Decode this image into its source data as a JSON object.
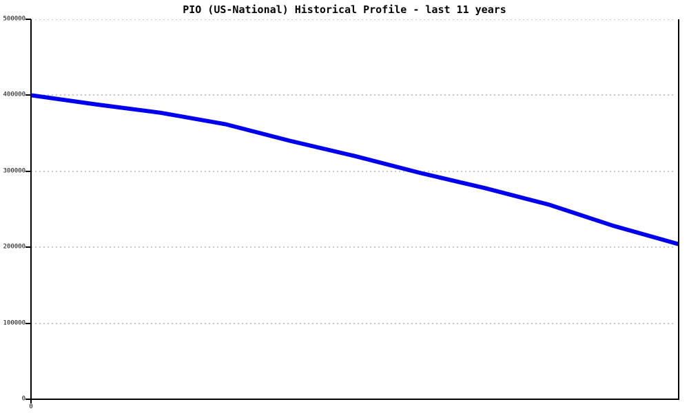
{
  "title": "PIO (US-National) Historical Profile - last 11 years",
  "chart_data": {
    "type": "line",
    "title": "PIO (US-National) Historical Profile - last 11 years",
    "x": [
      0,
      1,
      2,
      3,
      4,
      5,
      6,
      7,
      8,
      9,
      10
    ],
    "values": [
      400000,
      388000,
      377000,
      362000,
      340000,
      320000,
      298000,
      278000,
      256000,
      228000,
      204000
    ],
    "xlabel": "",
    "ylabel": "",
    "xlim": [
      0,
      10
    ],
    "ylim": [
      0,
      500000
    ],
    "y_ticks": [
      0,
      100000,
      200000,
      300000,
      400000,
      500000
    ],
    "y_tick_labels": [
      "0",
      "100000",
      "200000",
      "300000",
      "400000",
      "500000"
    ],
    "x_tick_labels": [
      "0"
    ],
    "grid": "horizontal-dotted",
    "legend": "none",
    "line_color": "#0000EE",
    "line_width": 6,
    "gridline_color": "#c6c6c6",
    "axis_color": "#000000",
    "background_color": "#ffffff"
  }
}
